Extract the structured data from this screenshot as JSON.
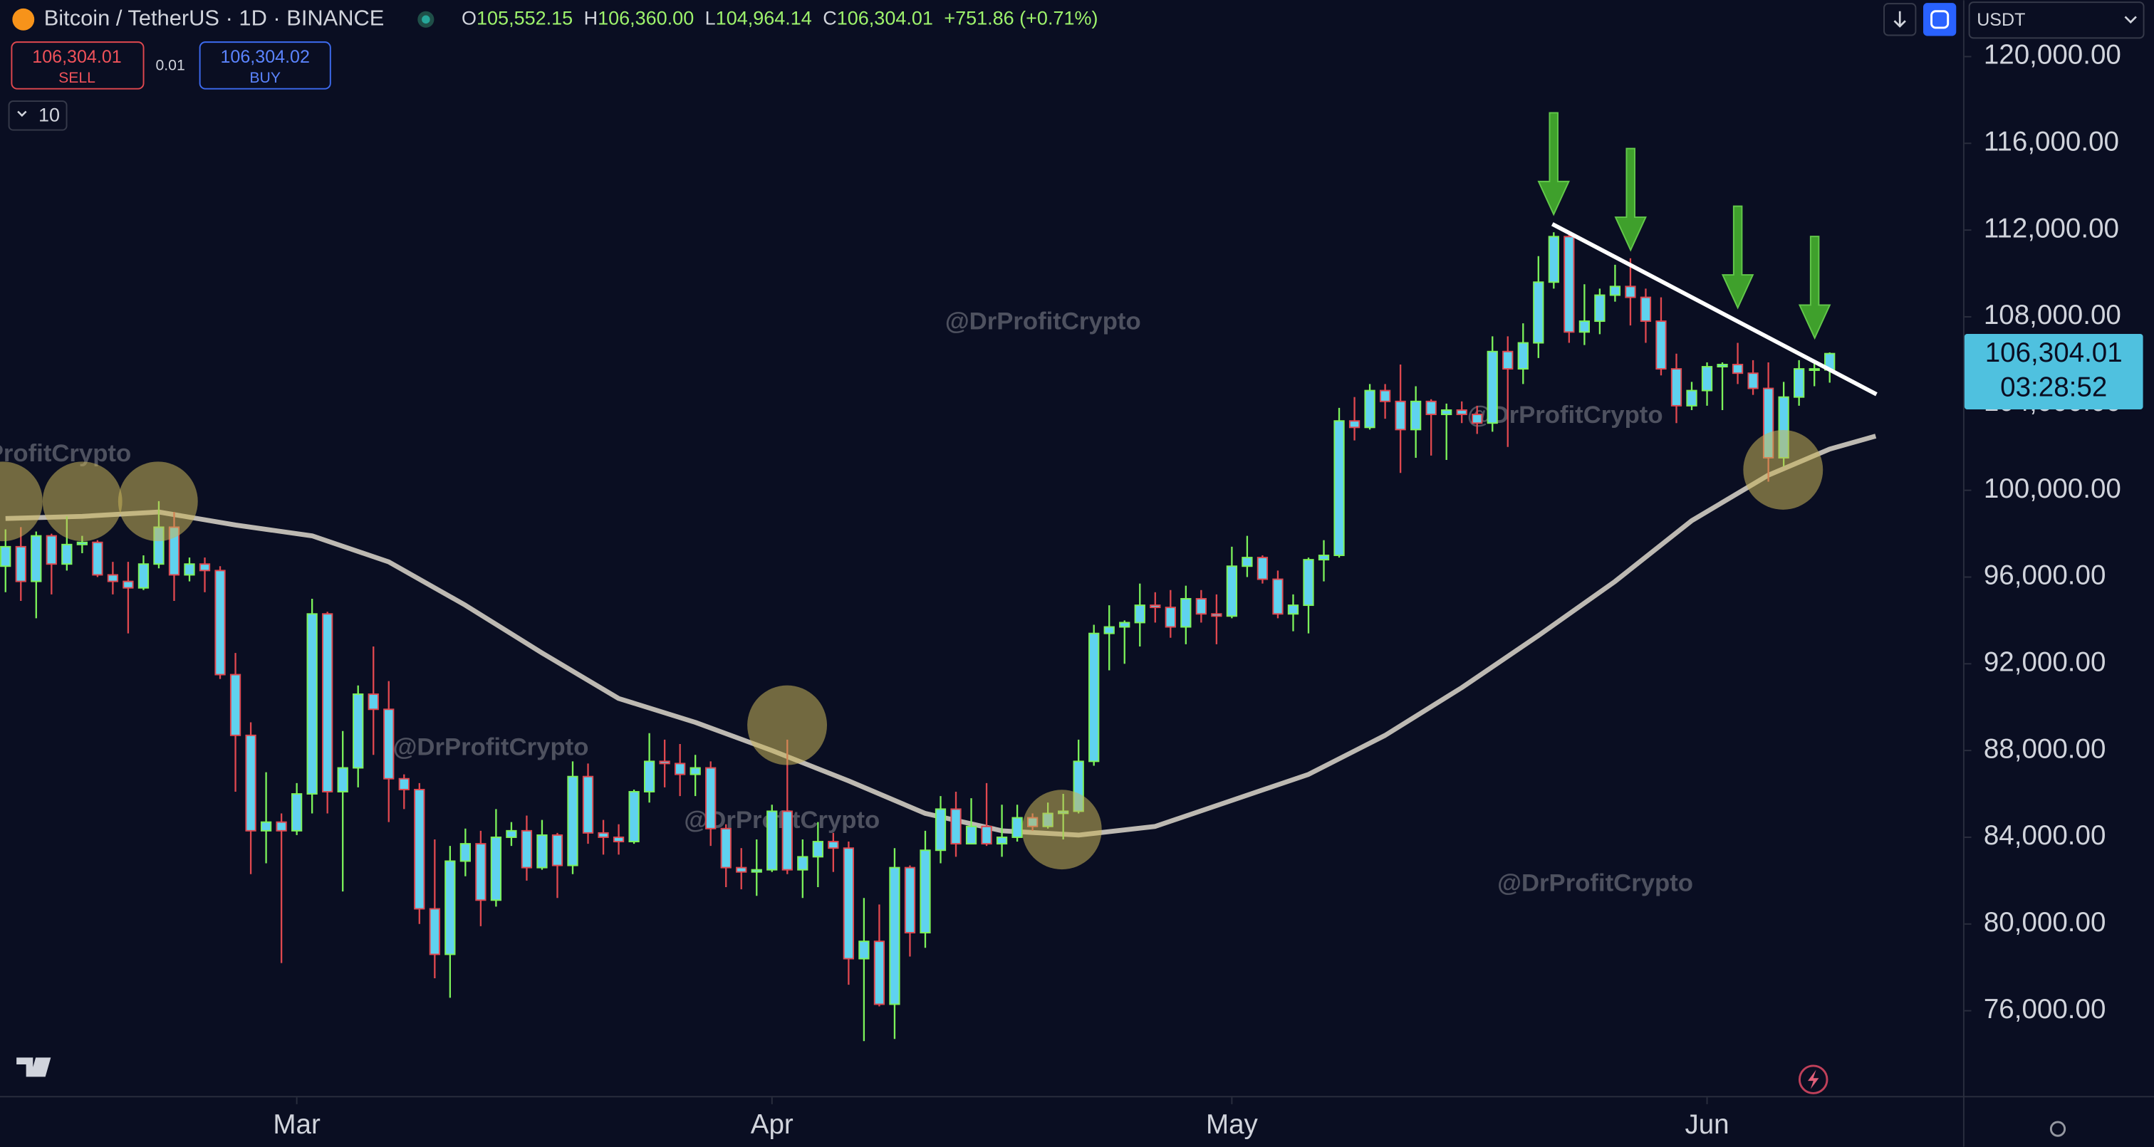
{
  "header": {
    "symbol": "Bitcoin / TetherUS · 1D · BINANCE",
    "ohlc": [
      {
        "key": "O",
        "value": "105,552.15"
      },
      {
        "key": "H",
        "value": "106,360.00"
      },
      {
        "key": "L",
        "value": "104,964.14"
      },
      {
        "key": "C",
        "value": "106,304.01"
      }
    ],
    "change": "+751.86 (+0.71%)"
  },
  "order_panel": {
    "sell_price": "106,304.01",
    "sell_label": "SELL",
    "spread": "0.01",
    "buy_price": "106,304.02",
    "buy_label": "BUY",
    "quantity": "10"
  },
  "currency": "USDT",
  "price_label": {
    "price": "106,304.01",
    "countdown": "03:28:52"
  },
  "watermark": "@DrProfitCrypto",
  "chart_data": {
    "type": "candlestick",
    "xlim": [
      -0.36,
      127.7
    ],
    "xticks": [
      {
        "value": 19,
        "label": "Mar"
      },
      {
        "value": 50,
        "label": "Apr"
      },
      {
        "value": 80,
        "label": "May"
      },
      {
        "value": 111,
        "label": "Jun"
      }
    ],
    "ylim": [
      72070,
      122600
    ],
    "yticks": [
      {
        "value": 76000,
        "label": "76,000.00"
      },
      {
        "value": 80000,
        "label": "80,000.00"
      },
      {
        "value": 84000,
        "label": "84,000.00"
      },
      {
        "value": 88000,
        "label": "88,000.00"
      },
      {
        "value": 92000,
        "label": "92,000.00"
      },
      {
        "value": 96000,
        "label": "96,000.00"
      },
      {
        "value": 100000,
        "label": "100,000.00"
      },
      {
        "value": 104000,
        "label": "104,000.00"
      },
      {
        "value": 108000,
        "label": "108,000.00"
      },
      {
        "value": 112000,
        "label": "112,000.00"
      },
      {
        "value": 116000,
        "label": "116,000.00"
      },
      {
        "value": 120000,
        "label": "120,000.00"
      }
    ],
    "body_color": "#5fd2ef",
    "up_color": "#7cf25a",
    "down_color": "#e0484f",
    "candles": [
      [
        96500,
        98200,
        95300,
        97400
      ],
      [
        97400,
        98300,
        94900,
        95800
      ],
      [
        95800,
        98100,
        94100,
        97900
      ],
      [
        97900,
        98000,
        95200,
        96600
      ],
      [
        96600,
        98800,
        96300,
        97500
      ],
      [
        97500,
        97900,
        97100,
        97600
      ],
      [
        97600,
        97700,
        96000,
        96100
      ],
      [
        96100,
        96700,
        95200,
        95800
      ],
      [
        95800,
        96700,
        93400,
        95500
      ],
      [
        95500,
        97000,
        95400,
        96600
      ],
      [
        96600,
        99500,
        96400,
        98300
      ],
      [
        98300,
        99000,
        94900,
        96100
      ],
      [
        96100,
        96900,
        95800,
        96600
      ],
      [
        96600,
        96900,
        95300,
        96300
      ],
      [
        96300,
        96500,
        91300,
        91500
      ],
      [
        91500,
        92500,
        86100,
        88700
      ],
      [
        88700,
        89300,
        82300,
        84300
      ],
      [
        84300,
        87000,
        82800,
        84700
      ],
      [
        84700,
        85100,
        78200,
        84300
      ],
      [
        84300,
        86500,
        84100,
        86000
      ],
      [
        86000,
        95000,
        85100,
        94300
      ],
      [
        94300,
        94400,
        85100,
        86100
      ],
      [
        86100,
        88900,
        81500,
        87200
      ],
      [
        87200,
        91000,
        86300,
        90600
      ],
      [
        90600,
        92800,
        87800,
        89900
      ],
      [
        89900,
        91200,
        84700,
        86700
      ],
      [
        86700,
        86900,
        85300,
        86200
      ],
      [
        86200,
        86500,
        80000,
        80700
      ],
      [
        80700,
        83900,
        77500,
        78600
      ],
      [
        78600,
        83600,
        76600,
        82900
      ],
      [
        82900,
        84400,
        82200,
        83700
      ],
      [
        83700,
        84300,
        79900,
        81100
      ],
      [
        81100,
        85300,
        80800,
        84000
      ],
      [
        84000,
        84700,
        83600,
        84300
      ],
      [
        84300,
        85000,
        82000,
        82600
      ],
      [
        82600,
        84800,
        82500,
        84100
      ],
      [
        84100,
        84200,
        81200,
        82700
      ],
      [
        82700,
        87500,
        82300,
        86800
      ],
      [
        86800,
        87400,
        83700,
        84200
      ],
      [
        84200,
        84800,
        83200,
        84000
      ],
      [
        84000,
        84600,
        83200,
        83800
      ],
      [
        83800,
        86200,
        83700,
        86100
      ],
      [
        86100,
        88800,
        85600,
        87500
      ],
      [
        87500,
        88500,
        86300,
        87400
      ],
      [
        87400,
        88300,
        85900,
        86900
      ],
      [
        86900,
        87800,
        85900,
        87200
      ],
      [
        87200,
        87500,
        83600,
        84400
      ],
      [
        84400,
        84600,
        81700,
        82600
      ],
      [
        82600,
        83500,
        81600,
        82400
      ],
      [
        82400,
        83900,
        81300,
        82500
      ],
      [
        82500,
        85500,
        82400,
        85200
      ],
      [
        85200,
        88500,
        82300,
        82500
      ],
      [
        82500,
        83900,
        81200,
        83100
      ],
      [
        83100,
        84700,
        81700,
        83800
      ],
      [
        83800,
        84200,
        82400,
        83500
      ],
      [
        83500,
        83800,
        77200,
        78400
      ],
      [
        78400,
        81200,
        74600,
        79200
      ],
      [
        79200,
        80900,
        76200,
        76300
      ],
      [
        76300,
        83500,
        74700,
        82600
      ],
      [
        82600,
        82700,
        78500,
        79600
      ],
      [
        79600,
        84300,
        78900,
        83400
      ],
      [
        83400,
        85900,
        82800,
        85300
      ],
      [
        85300,
        86100,
        83100,
        83700
      ],
      [
        83700,
        85800,
        83700,
        84500
      ],
      [
        84500,
        86500,
        83600,
        83700
      ],
      [
        83700,
        85500,
        83100,
        84000
      ],
      [
        84000,
        85500,
        83800,
        84900
      ],
      [
        84900,
        85100,
        84300,
        84500
      ],
      [
        84500,
        85600,
        84400,
        85100
      ],
      [
        85100,
        86000,
        83900,
        85200
      ],
      [
        85200,
        88500,
        85100,
        87500
      ],
      [
        87500,
        93800,
        87300,
        93400
      ],
      [
        93400,
        94700,
        91700,
        93700
      ],
      [
        93700,
        94000,
        92000,
        93900
      ],
      [
        93900,
        95700,
        92800,
        94700
      ],
      [
        94700,
        95300,
        93900,
        94600
      ],
      [
        94600,
        95400,
        93200,
        93700
      ],
      [
        93700,
        95600,
        92900,
        95000
      ],
      [
        95000,
        95400,
        93900,
        94300
      ],
      [
        94300,
        95200,
        92900,
        94200
      ],
      [
        94200,
        97400,
        94100,
        96500
      ],
      [
        96500,
        97900,
        96000,
        96900
      ],
      [
        96900,
        97000,
        95700,
        95900
      ],
      [
        95900,
        96300,
        94100,
        94300
      ],
      [
        94300,
        95200,
        93500,
        94700
      ],
      [
        94700,
        96900,
        93400,
        96800
      ],
      [
        96800,
        97700,
        95800,
        97000
      ],
      [
        97000,
        103800,
        96900,
        103200
      ],
      [
        103200,
        104300,
        102300,
        102900
      ],
      [
        102900,
        104900,
        102800,
        104600
      ],
      [
        104600,
        104900,
        103300,
        104100
      ],
      [
        104100,
        105800,
        100800,
        102800
      ],
      [
        102800,
        104800,
        101500,
        104100
      ],
      [
        104100,
        104200,
        101600,
        103500
      ],
      [
        103500,
        104000,
        101400,
        103700
      ],
      [
        103700,
        104100,
        103100,
        103500
      ],
      [
        103500,
        103900,
        102600,
        103100
      ],
      [
        103100,
        107100,
        102700,
        106400
      ],
      [
        106400,
        107100,
        102000,
        105600
      ],
      [
        105600,
        107700,
        104900,
        106800
      ],
      [
        106800,
        110800,
        106100,
        109600
      ],
      [
        109600,
        111900,
        109300,
        111700
      ],
      [
        111700,
        111800,
        106800,
        107300
      ],
      [
        107300,
        109500,
        106700,
        107800
      ],
      [
        107800,
        109300,
        107200,
        109000
      ],
      [
        109000,
        110400,
        108700,
        109400
      ],
      [
        109400,
        110700,
        107600,
        108900
      ],
      [
        108900,
        109300,
        106800,
        107800
      ],
      [
        107800,
        108900,
        105300,
        105600
      ],
      [
        105600,
        106300,
        103100,
        103900
      ],
      [
        103900,
        105000,
        103700,
        104600
      ],
      [
        104600,
        105900,
        103900,
        105700
      ],
      [
        105700,
        105900,
        103700,
        105800
      ],
      [
        105800,
        106800,
        104900,
        105400
      ],
      [
        105400,
        106000,
        104400,
        104700
      ],
      [
        104700,
        105900,
        100400,
        101500
      ],
      [
        101500,
        105000,
        101100,
        104300
      ],
      [
        104300,
        106000,
        103900,
        105600
      ],
      [
        105600,
        106000,
        104800,
        105600
      ],
      [
        105552.15,
        106360,
        104964.14,
        106304.01
      ]
    ],
    "moving_average": {
      "color": "#bdb9b2",
      "x": [
        0,
        5,
        10,
        15,
        20,
        25,
        30,
        35,
        40,
        45,
        50,
        55,
        60,
        65,
        70,
        75,
        80,
        85,
        90,
        95,
        100,
        105,
        110,
        115,
        119,
        122
      ],
      "values": [
        98700,
        98800,
        99000,
        98400,
        97900,
        96700,
        94700,
        92500,
        90400,
        89300,
        88000,
        86600,
        85100,
        84300,
        84100,
        84500,
        85700,
        86900,
        88700,
        90900,
        93300,
        95800,
        98600,
        100700,
        101900,
        102500
      ]
    }
  }
}
